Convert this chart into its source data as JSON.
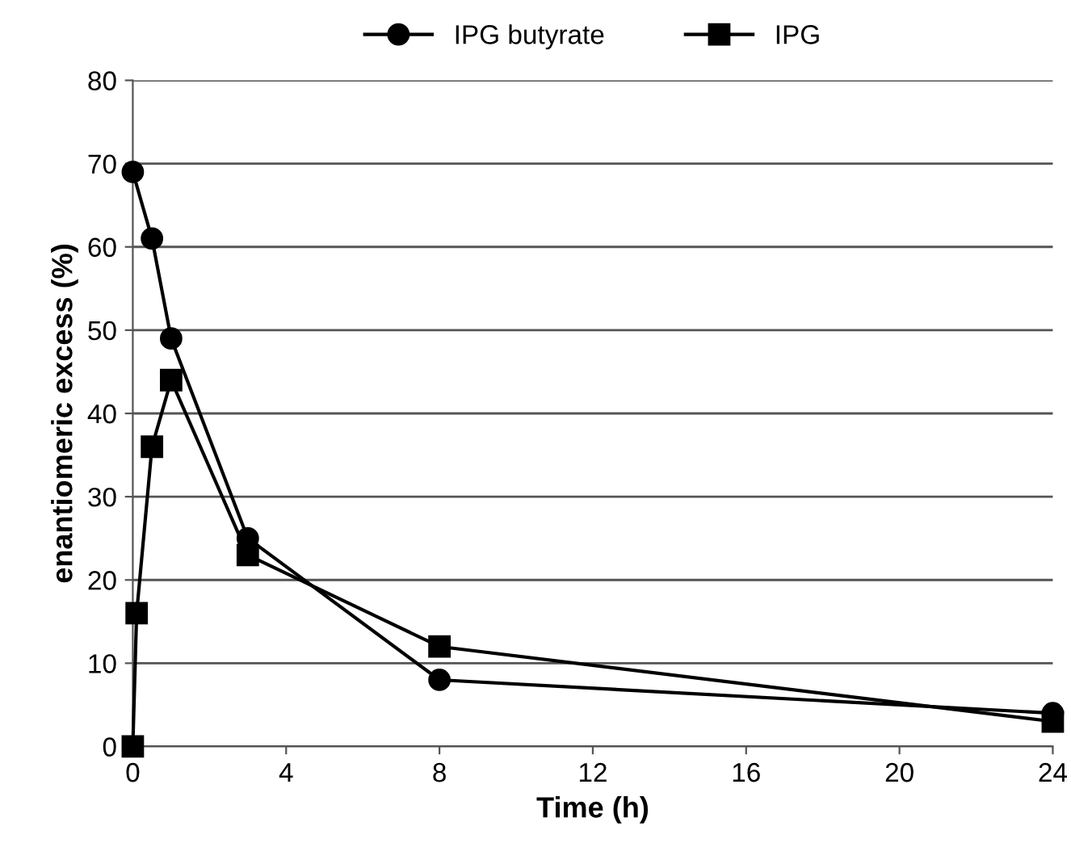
{
  "chart_data": {
    "type": "line",
    "xlabel": "Time (h)",
    "ylabel": "enantiomeric excess (%)",
    "series": [
      {
        "name": "IPG butyrate",
        "color": "#000000",
        "marker": "circle",
        "x": [
          0,
          0.5,
          1,
          3,
          8,
          24
        ],
        "values": [
          69,
          61,
          49,
          25,
          8,
          4
        ]
      },
      {
        "name": "IPG",
        "color": "#000000",
        "marker": "square",
        "x": [
          0,
          0.1,
          0.5,
          1,
          3,
          8,
          24
        ],
        "values": [
          0,
          16,
          36,
          44,
          23,
          12,
          3
        ]
      }
    ],
    "xlim": [
      0,
      24
    ],
    "xticks": [
      0,
      4,
      8,
      12,
      16,
      20,
      24
    ],
    "ylim": [
      0,
      80
    ],
    "yticks": [
      0,
      10,
      20,
      30,
      40,
      50,
      60,
      70,
      80
    ],
    "grid": "y",
    "legend": "top",
    "line_style": "solid"
  }
}
